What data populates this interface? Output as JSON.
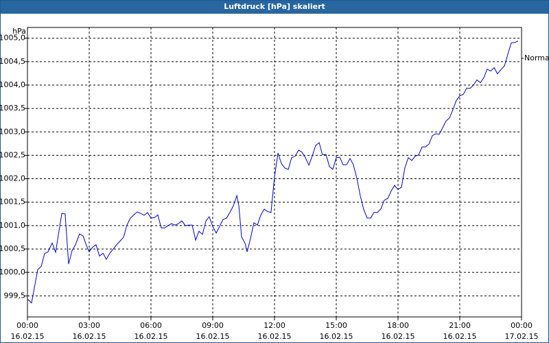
{
  "chart_data": {
    "type": "line",
    "title": "Luftdruck [hPa] skaliert",
    "y_unit": "hPa",
    "legend": "right",
    "grid": true,
    "xlim": [
      0,
      24
    ],
    "xticks": [
      {
        "value": 0,
        "label": "00:00",
        "date": "16.02.15"
      },
      {
        "value": 3,
        "label": "03:00",
        "date": "16.02.15"
      },
      {
        "value": 6,
        "label": "06:00",
        "date": "16.02.15"
      },
      {
        "value": 9,
        "label": "09:00",
        "date": "16.02.15"
      },
      {
        "value": 12,
        "label": "12:00",
        "date": "16.02.15"
      },
      {
        "value": 15,
        "label": "15:00",
        "date": "16.02.15"
      },
      {
        "value": 18,
        "label": "18:00",
        "date": "16.02.15"
      },
      {
        "value": 21,
        "label": "21:00",
        "date": "16.02.15"
      },
      {
        "value": 24,
        "label": "00:00",
        "date": "17.02.15"
      }
    ],
    "ylim": [
      999.05,
      1005.23
    ],
    "yticks": [
      {
        "value": 999.5,
        "label": "999,5"
      },
      {
        "value": 1000,
        "label": "1000,0"
      },
      {
        "value": 1000.5,
        "label": "1000,5"
      },
      {
        "value": 1001,
        "label": "1001,0"
      },
      {
        "value": 1001.5,
        "label": "1001,5"
      },
      {
        "value": 1002,
        "label": "1002,0"
      },
      {
        "value": 1002.5,
        "label": "1002,5"
      },
      {
        "value": 1003,
        "label": "1003,0"
      },
      {
        "value": 1003.5,
        "label": "1003,5"
      },
      {
        "value": 1004,
        "label": "1004,0"
      },
      {
        "value": 1004.5,
        "label": "1004,5"
      },
      {
        "value": 1005,
        "label": "1005,0"
      }
    ],
    "x": [
      0,
      0.2,
      0.33,
      0.5,
      0.67,
      0.83,
      1,
      1.2,
      1.37,
      1.53,
      1.67,
      1.83,
      2,
      2.17,
      2.33,
      2.53,
      2.7,
      2.87,
      3,
      3.17,
      3.33,
      3.5,
      3.67,
      3.83,
      4,
      4.17,
      4.33,
      4.5,
      4.67,
      4.83,
      5,
      5.17,
      5.33,
      5.5,
      5.67,
      5.83,
      6,
      6.17,
      6.33,
      6.5,
      6.67,
      6.83,
      7,
      7.17,
      7.33,
      7.5,
      7.67,
      7.83,
      8,
      8.17,
      8.33,
      8.5,
      8.67,
      8.83,
      9,
      9.17,
      9.33,
      9.5,
      9.67,
      9.83,
      10,
      10.17,
      10.27,
      10.4,
      10.57,
      10.67,
      10.83,
      11,
      11.17,
      11.33,
      11.5,
      11.67,
      11.83,
      12,
      12.17,
      12.33,
      12.5,
      12.67,
      12.83,
      13,
      13.17,
      13.33,
      13.5,
      13.67,
      13.83,
      14,
      14.17,
      14.33,
      14.5,
      14.67,
      14.83,
      15,
      15.17,
      15.33,
      15.5,
      15.67,
      15.83,
      16,
      16.17,
      16.33,
      16.5,
      16.67,
      16.83,
      17,
      17.17,
      17.33,
      17.5,
      17.67,
      17.83,
      18,
      18.17,
      18.33,
      18.5,
      18.67,
      18.83,
      19,
      19.17,
      19.33,
      19.5,
      19.67,
      19.83,
      20,
      20.17,
      20.33,
      20.5,
      20.67,
      20.83,
      21,
      21.17,
      21.33,
      21.5,
      21.67,
      21.83,
      22,
      22.17,
      22.33,
      22.5,
      22.67,
      22.83,
      23,
      23.17,
      23.33,
      23.5,
      23.67,
      23.83
    ],
    "series": [
      {
        "name": "Normal",
        "color": "#0000c8",
        "values": [
          999.43,
          999.35,
          999.66,
          1000.06,
          1000.13,
          1000.4,
          1000.44,
          1000.63,
          1000.43,
          1000.88,
          1001.26,
          1001.25,
          1000.18,
          1000.47,
          1000.59,
          1000.82,
          1000.78,
          1000.57,
          1000.44,
          1000.54,
          1000.59,
          1000.35,
          1000.41,
          1000.28,
          1000.41,
          1000.5,
          1000.59,
          1000.67,
          1000.75,
          1001.01,
          1001.16,
          1001.23,
          1001.29,
          1001.26,
          1001.22,
          1001.28,
          1001.16,
          1001.17,
          1001.23,
          1000.95,
          1000.95,
          1001,
          1001.04,
          1001.01,
          1001.04,
          1001.1,
          1001,
          1001.01,
          1001.01,
          1000.69,
          1000.88,
          1000.81,
          1001.1,
          1001.19,
          1000.98,
          1000.84,
          1000.98,
          1001.13,
          1001.16,
          1001.28,
          1001.42,
          1001.64,
          1001.42,
          1000.76,
          1000.62,
          1000.44,
          1000.72,
          1001.06,
          1001.01,
          1001.22,
          1001.35,
          1001.3,
          1001.28,
          1002.04,
          1002.55,
          1002.33,
          1002.23,
          1002.2,
          1002.45,
          1002.48,
          1002.61,
          1002.57,
          1002.45,
          1002.29,
          1002.48,
          1002.71,
          1002.77,
          1002.51,
          1002.52,
          1002.26,
          1002.2,
          1002.45,
          1002.46,
          1002.3,
          1002.3,
          1002.43,
          1002.3,
          1002.01,
          1001.63,
          1001.35,
          1001.16,
          1001.16,
          1001.28,
          1001.28,
          1001.36,
          1001.54,
          1001.58,
          1001.74,
          1001.86,
          1001.77,
          1001.82,
          1002.23,
          1002.45,
          1002.39,
          1002.48,
          1002.51,
          1002.68,
          1002.68,
          1002.74,
          1002.92,
          1002.96,
          1002.95,
          1003.09,
          1003.23,
          1003.3,
          1003.48,
          1003.67,
          1003.77,
          1003.8,
          1003.93,
          1003.93,
          1004,
          1004.11,
          1004.05,
          1004.16,
          1004.34,
          1004.3,
          1004.37,
          1004.24,
          1004.33,
          1004.41,
          1004.65,
          1004.9,
          1004.91,
          1004.94
        ]
      }
    ]
  }
}
